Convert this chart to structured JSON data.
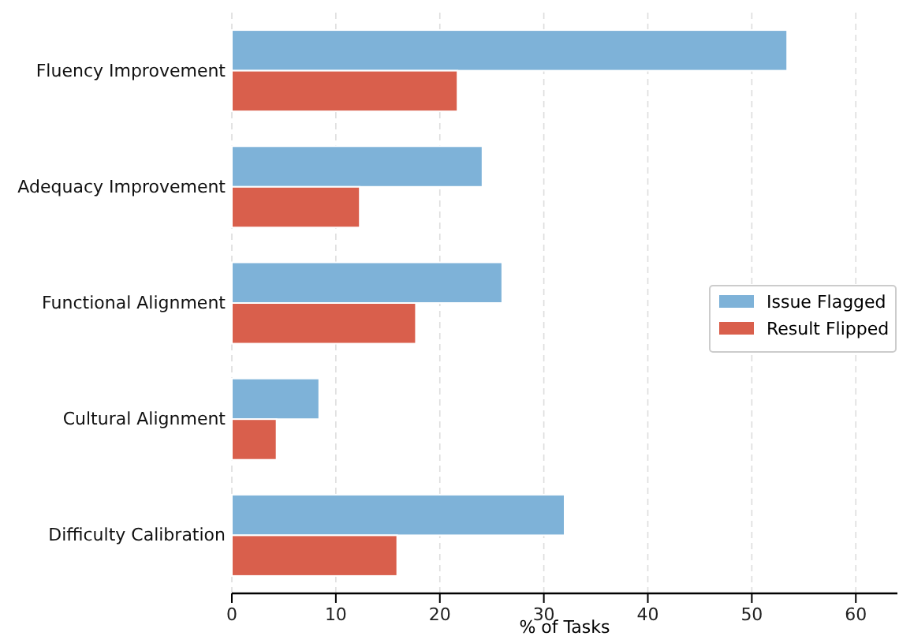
{
  "chart_data": {
    "type": "bar",
    "orientation": "horizontal",
    "xlabel": "% of Tasks",
    "categories": [
      "Fluency Improvement",
      "Adequacy Improvement",
      "Functional Alignment",
      "Cultural Alignment",
      "Difficulty Calibration"
    ],
    "series": [
      {
        "name": "Issue Flagged",
        "color": "#7eb2d8",
        "values": [
          53.4,
          24.1,
          26.0,
          8.4,
          32.0
        ]
      },
      {
        "name": "Result Flipped",
        "color": "#d95f4c",
        "values": [
          21.7,
          12.3,
          17.7,
          4.3,
          15.9
        ]
      }
    ],
    "xlim": [
      0,
      64
    ],
    "xticks": [
      0,
      10,
      20,
      30,
      40,
      50,
      60
    ],
    "grid": "x",
    "legend": "right"
  }
}
